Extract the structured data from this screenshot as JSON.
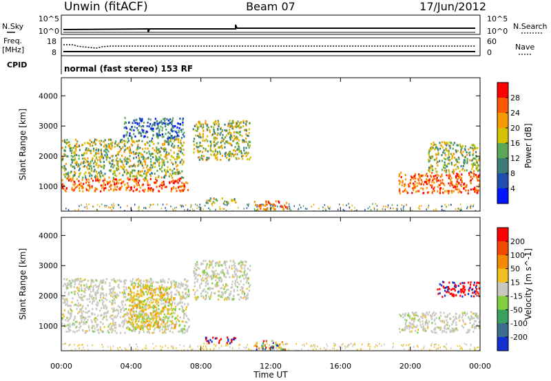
{
  "header": {
    "station": "Unwin (fitACF)",
    "beam": "Beam 07",
    "date": "17/Jun/2012"
  },
  "top_panels": {
    "nsky_label": "N.Sky",
    "nsearch_label": "N.Search",
    "nsky_ticks": [
      "10^5",
      "10^0"
    ],
    "nsearch_ticks": [
      "10^5",
      "10^0"
    ],
    "freq_label_line1": "Freq.",
    "freq_label_line2": "[MHz]",
    "freq_ticks": [
      "18",
      "8"
    ],
    "nave_label": "Nave",
    "nave_ticks": [
      "60",
      "0"
    ],
    "cpid_label": "CPID",
    "cpid_text": "normal (fast stereo) 153 RF"
  },
  "chart_data": [
    {
      "type": "heatmap",
      "title": "",
      "xlabel": "",
      "ylabel": "Slant Range [km]",
      "yticks": [
        "1000",
        "2000",
        "3000",
        "4000"
      ],
      "ylim": [
        180,
        4600
      ],
      "xlim": [
        0,
        24
      ],
      "colorbar": {
        "label": "Power [dB]",
        "ticks": [
          "4",
          "8",
          "12",
          "16",
          "20",
          "24",
          "28"
        ],
        "colors": [
          "#0015ff",
          "#1e4fb0",
          "#3b7c78",
          "#5aa858",
          "#d7c200",
          "#f59a00",
          "#ff5a00",
          "#ff0000"
        ]
      },
      "echo_regions": [
        {
          "t": [
            0.0,
            7.3
          ],
          "r": [
            850,
            1300
          ],
          "level": "high"
        },
        {
          "t": [
            0.0,
            7.0
          ],
          "r": [
            1300,
            2600
          ],
          "level": "mid"
        },
        {
          "t": [
            3.5,
            7.0
          ],
          "r": [
            2600,
            3300
          ],
          "level": "low"
        },
        {
          "t": [
            7.5,
            10.8
          ],
          "r": [
            1900,
            3200
          ],
          "level": "mid"
        },
        {
          "t": [
            8.2,
            10.0
          ],
          "r": [
            450,
            650
          ],
          "level": "mid"
        },
        {
          "t": [
            11.0,
            13.0
          ],
          "r": [
            250,
            550
          ],
          "level": "high"
        },
        {
          "t": [
            19.3,
            24.0
          ],
          "r": [
            800,
            1500
          ],
          "level": "high"
        },
        {
          "t": [
            21.0,
            24.0
          ],
          "r": [
            1500,
            2500
          ],
          "level": "mid"
        }
      ]
    },
    {
      "type": "heatmap",
      "title": "",
      "xlabel": "Time UT",
      "ylabel": "Slant Range [km]",
      "xticks": [
        "00:00",
        "04:00",
        "08:00",
        "12:00",
        "16:00",
        "20:00",
        "00:00"
      ],
      "yticks": [
        "1000",
        "2000",
        "3000",
        "4000"
      ],
      "ylim": [
        180,
        4600
      ],
      "xlim": [
        0,
        24
      ],
      "colorbar": {
        "label": "Velocity [m s^-1]",
        "ticks": [
          "200",
          "100",
          "50",
          "15",
          "-15",
          "-50",
          "-100",
          "-200"
        ],
        "colors": [
          "#1030d0",
          "#3a6e8e",
          "#3aa060",
          "#80d040",
          "#c8c8c0",
          "#f0c020",
          "#f58a00",
          "#f04a00",
          "#ff0000"
        ]
      },
      "echo_regions": [
        {
          "t": [
            0.0,
            7.3
          ],
          "r": [
            800,
            2600
          ],
          "v": "grey"
        },
        {
          "t": [
            3.8,
            6.5
          ],
          "r": [
            900,
            2400
          ],
          "v": "orange"
        },
        {
          "t": [
            7.5,
            10.8
          ],
          "r": [
            1900,
            3200
          ],
          "v": "grey"
        },
        {
          "t": [
            8.2,
            10.0
          ],
          "r": [
            450,
            650
          ],
          "v": "red"
        },
        {
          "t": [
            11.0,
            13.0
          ],
          "r": [
            250,
            550
          ],
          "v": "mixed"
        },
        {
          "t": [
            19.3,
            24.0
          ],
          "r": [
            800,
            1500
          ],
          "v": "grey"
        },
        {
          "t": [
            21.5,
            24.0
          ],
          "r": [
            2000,
            2500
          ],
          "v": "red"
        }
      ]
    }
  ]
}
